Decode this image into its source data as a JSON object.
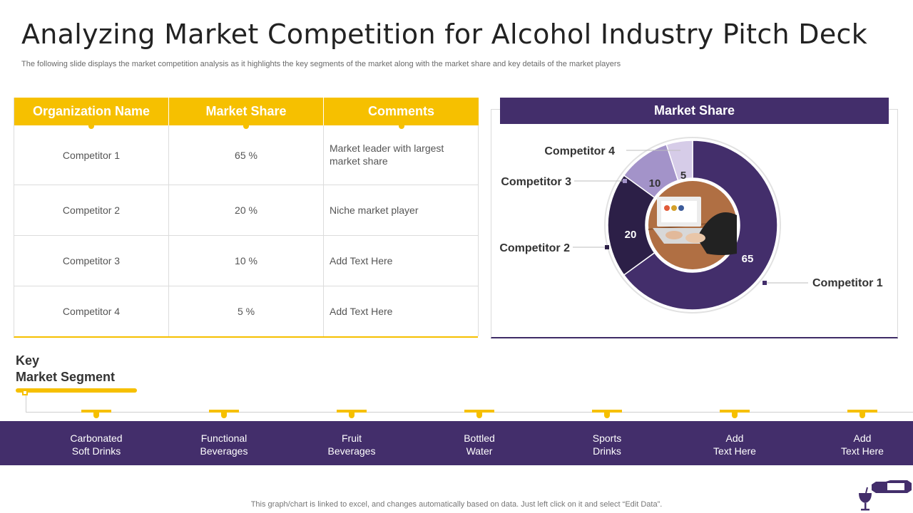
{
  "slide": {
    "title": "Analyzing Market Competition for Alcohol Industry Pitch Deck",
    "subtitle": "The following slide displays the market competition analysis as it highlights the key segments of the market along with the market share and key details of the market players"
  },
  "table": {
    "headers": [
      "Organization Name",
      "Market Share",
      "Comments"
    ],
    "rows": [
      {
        "name": "Competitor 1",
        "share": "65 %",
        "comment": "Market leader with largest market share"
      },
      {
        "name": "Competitor 2",
        "share": "20 %",
        "comment": "Niche market player"
      },
      {
        "name": "Competitor 3",
        "share": "10 %",
        "comment": "Add Text Here"
      },
      {
        "name": "Competitor 4",
        "share": "5 %",
        "comment": "Add Text Here"
      }
    ]
  },
  "chart_panel": {
    "header": "Market Share"
  },
  "chart_data": {
    "type": "pie",
    "categories": [
      "Competitor 1",
      "Competitor 2",
      "Competitor 3",
      "Competitor 4"
    ],
    "values": [
      65,
      20,
      10,
      5
    ],
    "colors": [
      "#432e6b",
      "#2c1f47",
      "#a393c9",
      "#d6cce8"
    ],
    "donut": true,
    "center_image": "laptop-photo"
  },
  "segments": {
    "title_line1": "Key",
    "title_line2": "Market Segment",
    "items": [
      {
        "line1": "Carbonated",
        "line2": "Soft Drinks"
      },
      {
        "line1": "Functional",
        "line2": "Beverages"
      },
      {
        "line1": "Fruit",
        "line2": "Beverages"
      },
      {
        "line1": "Bottled",
        "line2": "Water"
      },
      {
        "line1": "Sports",
        "line2": "Drinks"
      },
      {
        "line1": "Add",
        "line2": "Text Here"
      },
      {
        "line1": "Add",
        "line2": "Text Here"
      }
    ]
  },
  "footer": {
    "note": "This graph/chart is linked to excel,  and changes automatically based on data. Just left click on it and select “Edit Data”."
  },
  "colors": {
    "accent_yellow": "#f6c000",
    "primary_purple": "#432e6b"
  },
  "icons": {
    "brand": "wine-bottle-glass-icon"
  }
}
